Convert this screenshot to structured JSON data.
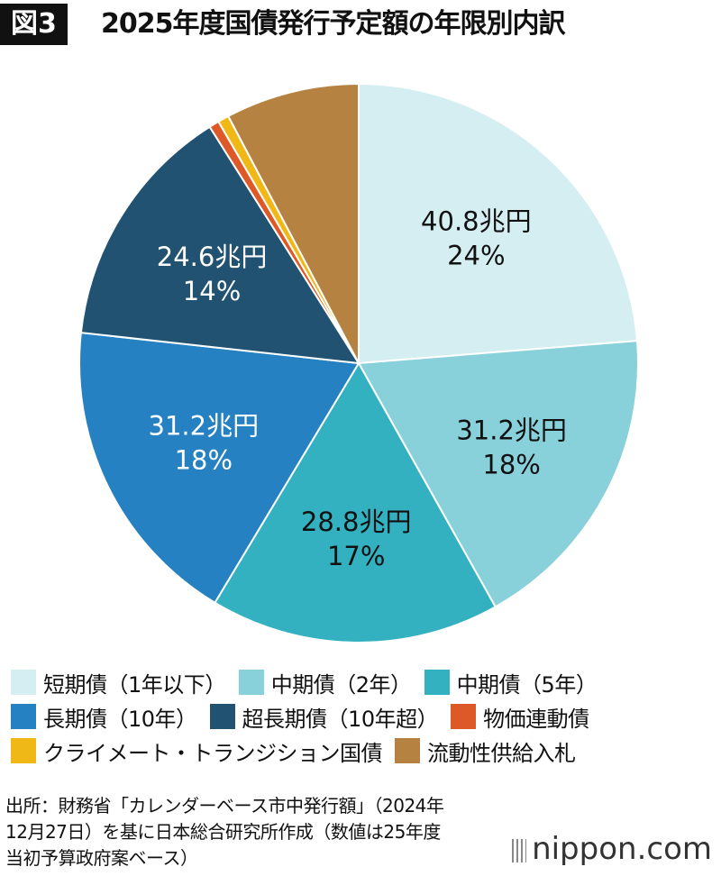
{
  "header": {
    "badge": "図3",
    "title": "2025年度国債発行予定額の年限別内訳"
  },
  "chart_data": {
    "type": "pie",
    "title": "2025年度国債発行予定額の年限別内訳",
    "start_angle_deg": 0,
    "direction": "clockwise",
    "slices": [
      {
        "name": "短期債（1年以下）",
        "value": 40.8,
        "value_label": "40.8兆円",
        "percent_label": "24%",
        "color": "#d4eef2",
        "label_color": "#111111"
      },
      {
        "name": "中期債（2年）",
        "value": 31.2,
        "value_label": "31.2兆円",
        "percent_label": "18%",
        "color": "#88d0da",
        "label_color": "#111111"
      },
      {
        "name": "中期債（5年）",
        "value": 28.8,
        "value_label": "28.8兆円",
        "percent_label": "17%",
        "color": "#33b1c0",
        "label_color": "#111111"
      },
      {
        "name": "長期債（10年）",
        "value": 31.2,
        "value_label": "31.2兆円",
        "percent_label": "18%",
        "color": "#2581c1",
        "label_color": "#ffffff"
      },
      {
        "name": "超長期債（10年超）",
        "value": 24.6,
        "value_label": "24.6兆円",
        "percent_label": "14%",
        "color": "#215271",
        "label_color": "#ffffff"
      },
      {
        "name": "物価連動債",
        "value": 1.0,
        "value_label": "",
        "percent_label": "",
        "color": "#dd5a28",
        "label_color": "#111111"
      },
      {
        "name": "クライメート・トランジション国債",
        "value": 1.1,
        "value_label": "",
        "percent_label": "",
        "color": "#f0b817",
        "label_color": "#111111"
      },
      {
        "name": "流動性供給入札",
        "value": 13.3,
        "value_label": "",
        "percent_label": "",
        "color": "#b58242",
        "label_color": "#111111"
      }
    ]
  },
  "legend": {
    "rows": [
      [
        0,
        1,
        2
      ],
      [
        3,
        4,
        5
      ],
      [
        6,
        7
      ]
    ]
  },
  "source": {
    "lines": [
      "出所：財務省「カレンダーベース市中発行額」（2024年",
      "12月27日）を基に日本総合研究所作成（数値は25年度",
      "当初予算政府案ベース）"
    ]
  },
  "logo": {
    "text": "nippon.com"
  }
}
